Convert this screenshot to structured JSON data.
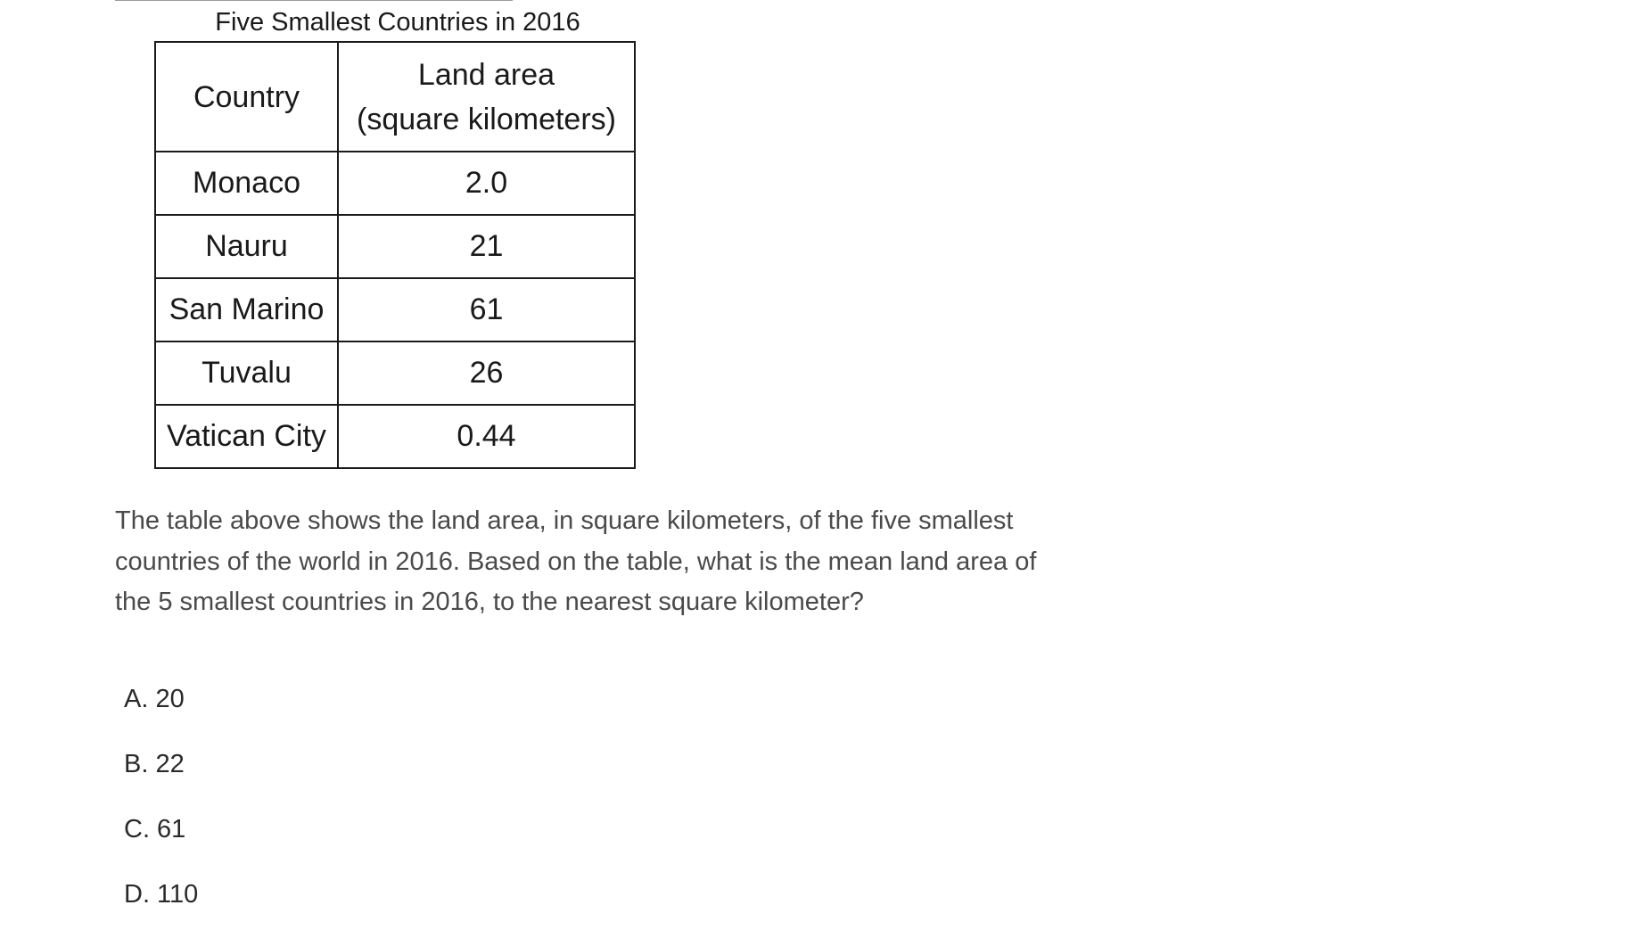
{
  "table": {
    "title": "Five Smallest Countries in 2016",
    "headers": {
      "country": "Country",
      "area_line1": "Land area",
      "area_line2": "(square kilometers)"
    },
    "rows": [
      {
        "country": "Monaco",
        "area": "2.0"
      },
      {
        "country": "Nauru",
        "area": "21"
      },
      {
        "country": "San Marino",
        "area": "61"
      },
      {
        "country": "Tuvalu",
        "area": "26"
      },
      {
        "country": "Vatican City",
        "area": "0.44"
      }
    ]
  },
  "question": {
    "text": "The table above shows the land area, in square kilometers, of the five smallest countries of the world in 2016. Based on the table, what is the mean land area of the 5 smallest countries in 2016, to the nearest square kilometer?"
  },
  "choices": [
    {
      "label": "A. 20"
    },
    {
      "label": "B. 22"
    },
    {
      "label": "C. 61"
    },
    {
      "label": "D. 110"
    }
  ]
}
